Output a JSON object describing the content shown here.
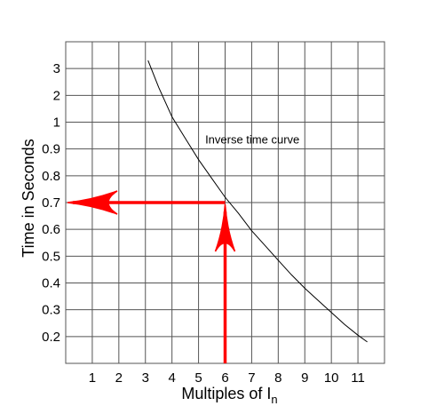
{
  "chart_data": {
    "type": "line",
    "title": "",
    "xlabel": "Multiples of I",
    "xlabel_sub": "n",
    "ylabel": "Time in Seconds",
    "grid": true,
    "x_categories": [
      "1",
      "2",
      "3",
      "4",
      "5",
      "6",
      "7",
      "8",
      "9",
      "10",
      "11"
    ],
    "y_categories": [
      "0.2",
      "0.3",
      "0.4",
      "0.5",
      "0.6",
      "0.7",
      "0.8",
      "0.9",
      "1",
      "2",
      "3"
    ],
    "x_range": [
      0,
      12
    ],
    "series": [
      {
        "label": "Inverse time curve",
        "x": [
          3.1,
          3.5,
          4.0,
          4.5,
          5.0,
          5.5,
          6.0,
          6.5,
          7.0,
          7.5,
          8.0,
          8.5,
          9.0,
          9.5,
          10.0,
          10.5,
          11.0,
          11.35
        ],
        "y_index": [
          11.3,
          10.3,
          9.2,
          8.4,
          7.6,
          6.9,
          6.2,
          5.6,
          4.95,
          4.4,
          3.85,
          3.3,
          2.8,
          2.35,
          1.9,
          1.45,
          1.05,
          0.8
        ]
      }
    ],
    "annotation": {
      "text": "Inverse time curve",
      "x_value": 6,
      "y_value": 0.7,
      "arrow_color": "#ff0000",
      "curve_color": "#000000"
    }
  }
}
